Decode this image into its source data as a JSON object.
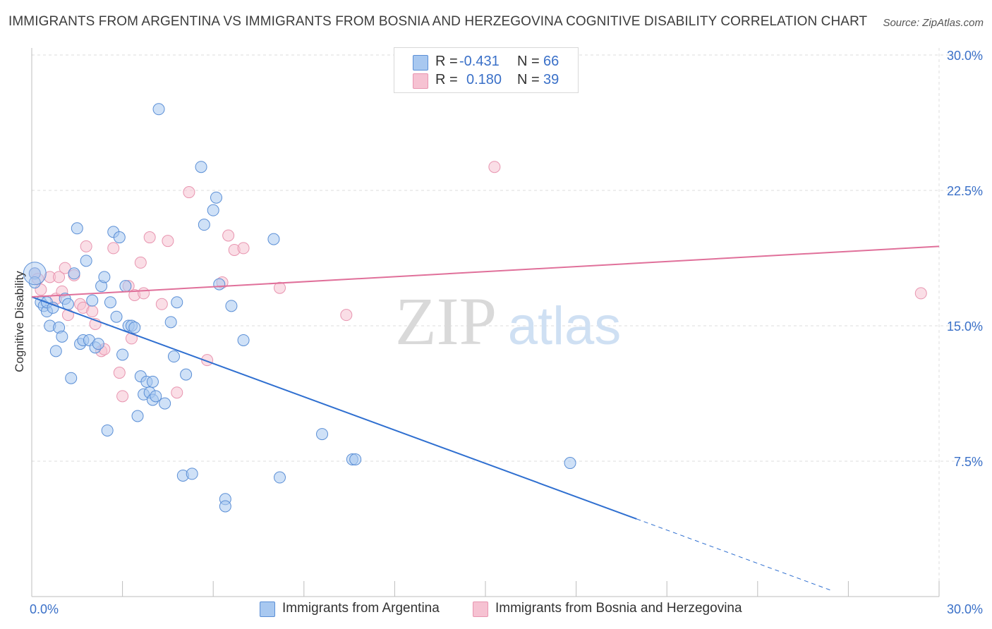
{
  "header": {
    "title": "IMMIGRANTS FROM ARGENTINA VS IMMIGRANTS FROM BOSNIA AND HERZEGOVINA COGNITIVE DISABILITY CORRELATION CHART",
    "source": "Source: ZipAtlas.com"
  },
  "watermark": {
    "zip": "ZIP",
    "atlas": "atlas"
  },
  "legend": {
    "r_label": "R =",
    "n_label": "N =",
    "series": [
      {
        "r": "-0.431",
        "n": "66"
      },
      {
        "r": "0.180",
        "n": "39"
      }
    ]
  },
  "bottom_legend": [
    {
      "label": "Immigrants from Argentina"
    },
    {
      "label": "Immigrants from Bosnia and Herzegovina"
    }
  ],
  "colors": {
    "blue_fill": "#a8c8f0",
    "blue_stroke": "#5b8fd6",
    "blue_line": "#2f6fd0",
    "pink_fill": "#f6c2d2",
    "pink_stroke": "#e895b0",
    "pink_line": "#e0709a",
    "tick_text": "#3a70c8",
    "grid": "#dcdcdc"
  },
  "chart_data": {
    "type": "scatter",
    "title": "IMMIGRANTS FROM ARGENTINA VS IMMIGRANTS FROM BOSNIA AND HERZEGOVINA COGNITIVE DISABILITY CORRELATION CHART",
    "xlabel": "",
    "ylabel": "Cognitive Disability",
    "xlim": [
      0,
      30
    ],
    "ylim": [
      0,
      30
    ],
    "x_tick_labels": [
      "0.0%",
      "30.0%"
    ],
    "y_ticks": [
      7.5,
      15.0,
      22.5,
      30.0
    ],
    "y_tick_labels": [
      "7.5%",
      "15.0%",
      "22.5%",
      "30.0%"
    ],
    "grid": true,
    "legend_position": "top-center",
    "series": [
      {
        "name": "Immigrants from Argentina",
        "r": -0.431,
        "n": 66,
        "trend": {
          "x0": 0.0,
          "y0": 16.6,
          "x1": 20.0,
          "y1": 4.3,
          "dash_to_x": 26.5,
          "dash_to_y": 0.3
        },
        "points": [
          [
            0.1,
            17.9
          ],
          [
            0.1,
            17.4
          ],
          [
            0.3,
            16.3
          ],
          [
            0.4,
            16.1
          ],
          [
            0.5,
            15.8
          ],
          [
            0.5,
            16.3
          ],
          [
            0.6,
            15.0
          ],
          [
            0.7,
            16.0
          ],
          [
            0.8,
            13.6
          ],
          [
            0.9,
            14.9
          ],
          [
            1.0,
            14.4
          ],
          [
            1.1,
            16.5
          ],
          [
            1.2,
            16.2
          ],
          [
            1.3,
            12.1
          ],
          [
            1.4,
            17.9
          ],
          [
            1.5,
            20.4
          ],
          [
            1.6,
            14.0
          ],
          [
            1.7,
            14.2
          ],
          [
            1.8,
            18.6
          ],
          [
            1.9,
            14.2
          ],
          [
            2.0,
            16.4
          ],
          [
            2.1,
            13.8
          ],
          [
            2.2,
            14.0
          ],
          [
            2.3,
            17.2
          ],
          [
            2.4,
            17.7
          ],
          [
            2.5,
            9.2
          ],
          [
            2.6,
            16.3
          ],
          [
            2.7,
            20.2
          ],
          [
            2.8,
            15.5
          ],
          [
            2.9,
            19.9
          ],
          [
            3.0,
            13.4
          ],
          [
            3.1,
            17.2
          ],
          [
            3.2,
            15.0
          ],
          [
            3.3,
            15.0
          ],
          [
            3.4,
            14.9
          ],
          [
            3.5,
            10.0
          ],
          [
            3.6,
            12.2
          ],
          [
            3.7,
            11.2
          ],
          [
            3.8,
            11.9
          ],
          [
            3.9,
            11.3
          ],
          [
            4.0,
            10.9
          ],
          [
            4.0,
            11.9
          ],
          [
            4.1,
            11.1
          ],
          [
            4.2,
            27.0
          ],
          [
            4.4,
            10.7
          ],
          [
            4.6,
            15.2
          ],
          [
            4.7,
            13.3
          ],
          [
            4.8,
            16.3
          ],
          [
            5.0,
            6.7
          ],
          [
            5.1,
            12.3
          ],
          [
            5.3,
            6.8
          ],
          [
            5.6,
            23.8
          ],
          [
            5.7,
            20.6
          ],
          [
            6.0,
            21.4
          ],
          [
            6.1,
            22.1
          ],
          [
            6.2,
            17.3
          ],
          [
            6.6,
            16.1
          ],
          [
            6.4,
            5.4
          ],
          [
            6.4,
            5.0
          ],
          [
            7.0,
            14.2
          ],
          [
            8.0,
            19.8
          ],
          [
            8.2,
            6.6
          ],
          [
            9.6,
            9.0
          ],
          [
            10.6,
            7.6
          ],
          [
            10.7,
            7.6
          ],
          [
            17.8,
            7.4
          ]
        ]
      },
      {
        "name": "Immigrants from Bosnia and Herzegovina",
        "r": 0.18,
        "n": 39,
        "trend": {
          "x0": 0.0,
          "y0": 16.6,
          "x1": 30.0,
          "y1": 19.4
        },
        "points": [
          [
            0.1,
            17.9
          ],
          [
            0.2,
            17.6
          ],
          [
            0.3,
            17.0
          ],
          [
            0.6,
            17.7
          ],
          [
            0.8,
            16.5
          ],
          [
            0.9,
            17.7
          ],
          [
            1.0,
            16.9
          ],
          [
            1.1,
            18.2
          ],
          [
            1.2,
            15.6
          ],
          [
            1.4,
            17.8
          ],
          [
            1.6,
            16.2
          ],
          [
            1.7,
            16.0
          ],
          [
            1.8,
            19.4
          ],
          [
            2.0,
            15.8
          ],
          [
            2.1,
            15.1
          ],
          [
            2.3,
            13.6
          ],
          [
            2.4,
            13.7
          ],
          [
            2.7,
            19.3
          ],
          [
            2.9,
            12.4
          ],
          [
            3.0,
            11.1
          ],
          [
            3.2,
            17.2
          ],
          [
            3.3,
            14.3
          ],
          [
            3.4,
            16.7
          ],
          [
            3.6,
            18.5
          ],
          [
            3.7,
            16.8
          ],
          [
            3.9,
            19.9
          ],
          [
            4.3,
            16.2
          ],
          [
            4.5,
            19.7
          ],
          [
            4.8,
            11.3
          ],
          [
            5.2,
            22.4
          ],
          [
            5.8,
            13.1
          ],
          [
            6.3,
            17.4
          ],
          [
            6.5,
            20.0
          ],
          [
            6.7,
            19.2
          ],
          [
            7.0,
            19.3
          ],
          [
            8.2,
            17.1
          ],
          [
            10.4,
            15.6
          ],
          [
            15.3,
            23.8
          ],
          [
            29.4,
            16.8
          ]
        ]
      }
    ]
  }
}
